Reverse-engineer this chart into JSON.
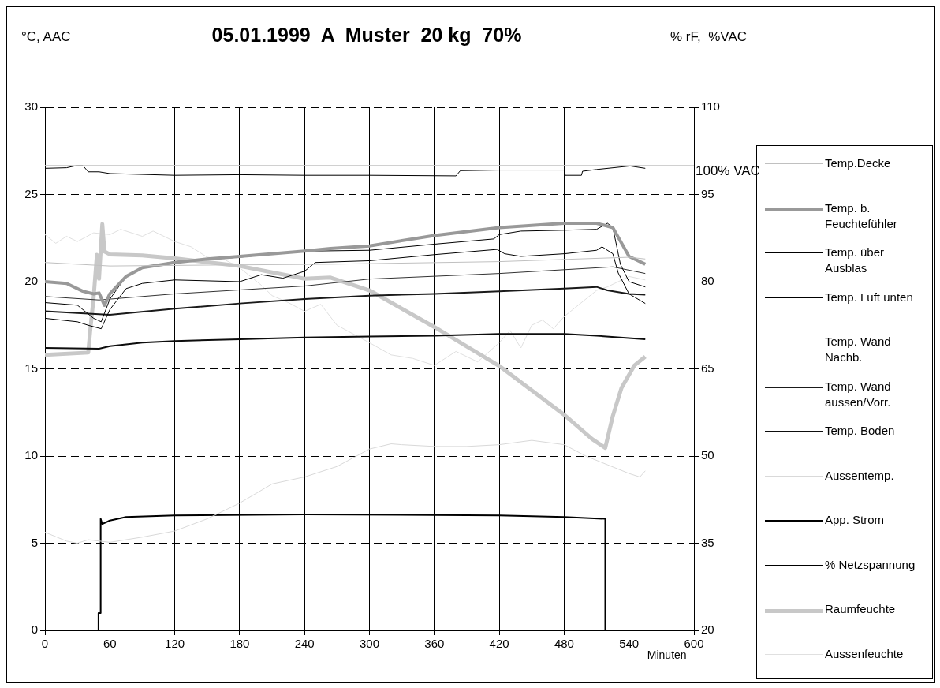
{
  "chart_data": {
    "type": "line",
    "title": "05.01.1999  A  Muster  20 kg  70%",
    "xlabel": "Minuten",
    "ylabel": "°C, AAC",
    "y2label": "% rF,  %VAC",
    "xlim": [
      0,
      600
    ],
    "xticks": [
      0,
      60,
      120,
      180,
      240,
      300,
      360,
      420,
      480,
      540,
      600
    ],
    "ylim": [
      0,
      30
    ],
    "yticks": [
      0,
      5,
      10,
      15,
      20,
      25,
      30
    ],
    "y2lim": [
      20,
      110
    ],
    "y2ticks": [
      20,
      35,
      50,
      65,
      80,
      95,
      110
    ],
    "grid": true,
    "legend": "right",
    "marker": "none",
    "ref_lines": [
      {
        "axis": "y2",
        "value": 100,
        "label": "100% VAC",
        "color": "#c8c8c8"
      }
    ],
    "series": [
      {
        "name": "Temp.Decke",
        "color": "#c0c0c0",
        "x": [
          0,
          60,
          150,
          264,
          420,
          540,
          555
        ],
        "values": [
          21.1,
          20.9,
          20.95,
          21.0,
          21.15,
          21.4,
          21.3
        ]
      },
      {
        "name": "Temp. b. Feuchtefühler",
        "color": "#999999",
        "x": [
          0,
          20,
          35,
          45,
          50,
          55,
          60,
          75,
          90,
          120,
          150,
          180,
          240,
          264,
          300,
          360,
          420,
          480,
          510,
          525,
          540,
          555
        ],
        "values": [
          20.0,
          19.9,
          19.45,
          19.3,
          19.35,
          18.65,
          19.3,
          20.3,
          20.8,
          21.1,
          21.3,
          21.45,
          21.75,
          21.9,
          22.05,
          22.65,
          23.1,
          23.35,
          23.35,
          23.1,
          21.45,
          21.0
        ]
      },
      {
        "name": "Temp. über Ausblas",
        "color": "#000000",
        "x": [
          0,
          30,
          45,
          52,
          60,
          75,
          90,
          120,
          180,
          240,
          300,
          360,
          415,
          420,
          440,
          480,
          510,
          520,
          525,
          532,
          540,
          555
        ],
        "values": [
          18.8,
          18.65,
          17.9,
          17.7,
          19.0,
          20.3,
          20.8,
          21.15,
          21.4,
          21.75,
          21.8,
          22.15,
          22.45,
          22.7,
          22.9,
          22.95,
          23.0,
          23.35,
          23.1,
          21.0,
          20.0,
          19.7
        ]
      },
      {
        "name": "Temp. Luft unten",
        "color": "#000000",
        "x": [
          0,
          30,
          40,
          52,
          60,
          75,
          90,
          120,
          180,
          200,
          220,
          240,
          250,
          300,
          360,
          418,
          425,
          440,
          480,
          510,
          515,
          525,
          530,
          540,
          555
        ],
        "values": [
          17.9,
          17.7,
          17.5,
          17.3,
          18.4,
          19.6,
          19.9,
          20.1,
          20.0,
          20.4,
          20.2,
          20.6,
          21.1,
          21.2,
          21.55,
          21.85,
          21.6,
          21.45,
          21.6,
          21.8,
          22.0,
          21.6,
          20.5,
          19.3,
          18.75
        ]
      },
      {
        "name": "Temp. Wand Nachb.",
        "color": "#333333",
        "x": [
          0,
          50,
          120,
          240,
          300,
          420,
          525,
          555
        ],
        "values": [
          19.15,
          18.95,
          19.3,
          19.75,
          20.15,
          20.47,
          20.85,
          20.47
        ]
      },
      {
        "name": "Temp. Wand aussen/Vorr.",
        "color": "#1a1a1a",
        "x": [
          0,
          30,
          60,
          120,
          180,
          240,
          300,
          360,
          420,
          480,
          510,
          520,
          540,
          555
        ],
        "values": [
          18.3,
          18.2,
          18.1,
          18.45,
          18.75,
          19.0,
          19.2,
          19.3,
          19.45,
          19.6,
          19.7,
          19.5,
          19.3,
          19.25
        ]
      },
      {
        "name": "Temp. Boden",
        "color": "#0d0d0d",
        "x": [
          0,
          50,
          60,
          90,
          120,
          180,
          240,
          300,
          360,
          420,
          480,
          510,
          555
        ],
        "values": [
          16.2,
          16.15,
          16.3,
          16.5,
          16.6,
          16.7,
          16.8,
          16.85,
          16.9,
          17.0,
          17.0,
          16.9,
          16.7
        ]
      },
      {
        "name": "Aussentemp.",
        "color": "#d9d9d9",
        "x": [
          0,
          20,
          30,
          40,
          60,
          90,
          120,
          150,
          180,
          210,
          240,
          270,
          300,
          320,
          330,
          360,
          390,
          420,
          450,
          480,
          500,
          520,
          540,
          550,
          555
        ],
        "values": [
          5.63,
          5.12,
          5.0,
          5.2,
          5.05,
          5.35,
          5.7,
          6.4,
          7.3,
          8.4,
          8.8,
          9.4,
          10.4,
          10.7,
          10.65,
          10.55,
          10.55,
          10.65,
          10.9,
          10.65,
          10.0,
          9.5,
          9.0,
          8.8,
          9.15
        ]
      },
      {
        "name": "App. Strom",
        "color": "#000000",
        "x": [
          0,
          49.5,
          49.5,
          51.5,
          51.5,
          53,
          60,
          75,
          120,
          240,
          420,
          480,
          518,
          518,
          555
        ],
        "values": [
          0,
          0,
          1.0,
          1.0,
          6.4,
          6.1,
          6.3,
          6.5,
          6.6,
          6.65,
          6.6,
          6.5,
          6.4,
          0,
          0
        ]
      },
      {
        "name": "% Netzspannung",
        "color": "#000000",
        "axis": "y2",
        "x": [
          0,
          20,
          30,
          35,
          40,
          50,
          60,
          120,
          180,
          240,
          300,
          380,
          384,
          420,
          480,
          481,
          496,
          497,
          510,
          541,
          555
        ],
        "values": [
          99.5,
          99.6,
          100.0,
          100.0,
          98.9,
          98.9,
          98.6,
          98.3,
          98.4,
          98.3,
          98.3,
          98.2,
          99.1,
          99.2,
          99.2,
          98.3,
          98.3,
          99.0,
          99.3,
          99.9,
          99.5
        ]
      },
      {
        "name": "Raumfeuchte",
        "color": "#c8c8c8",
        "axis": "y2",
        "x": [
          0,
          40,
          42,
          45,
          48,
          50,
          53,
          55,
          60,
          90,
          120,
          180,
          240,
          264,
          300,
          360,
          420,
          480,
          506,
          518,
          525,
          533,
          545,
          555
        ],
        "values": [
          67.4,
          67.8,
          71.9,
          77.3,
          84.6,
          80.5,
          89.9,
          85.2,
          84.7,
          84.5,
          84.0,
          82.7,
          80.5,
          80.7,
          78.5,
          72.2,
          65.5,
          57.1,
          52.9,
          51.4,
          56.9,
          61.7,
          65.6,
          67.1
        ]
      },
      {
        "name": "Aussenfeuchte",
        "color": "#e0e0e0",
        "axis": "y2",
        "x": [
          0,
          10,
          20,
          30,
          45,
          60,
          70,
          90,
          100,
          120,
          135,
          150,
          165,
          180,
          190,
          200,
          210,
          225,
          240,
          255,
          270,
          285,
          300,
          320,
          340,
          360,
          380,
          400,
          420,
          430,
          440,
          450,
          460,
          470,
          480,
          490,
          500,
          510,
          520,
          540,
          555
        ],
        "values": [
          88.1,
          86.6,
          87.8,
          86.9,
          88.4,
          88.1,
          89.0,
          87.8,
          88.7,
          86.9,
          86.0,
          84.2,
          83.9,
          82.4,
          80.9,
          79.4,
          77.6,
          76.4,
          74.9,
          76.1,
          72.5,
          71.0,
          69.5,
          67.4,
          66.8,
          65.6,
          68.0,
          66.2,
          69.5,
          71.6,
          68.6,
          72.5,
          73.4,
          71.9,
          74.0,
          75.5,
          77.0,
          78.5,
          79.1,
          80.9,
          80.3
        ]
      }
    ]
  }
}
